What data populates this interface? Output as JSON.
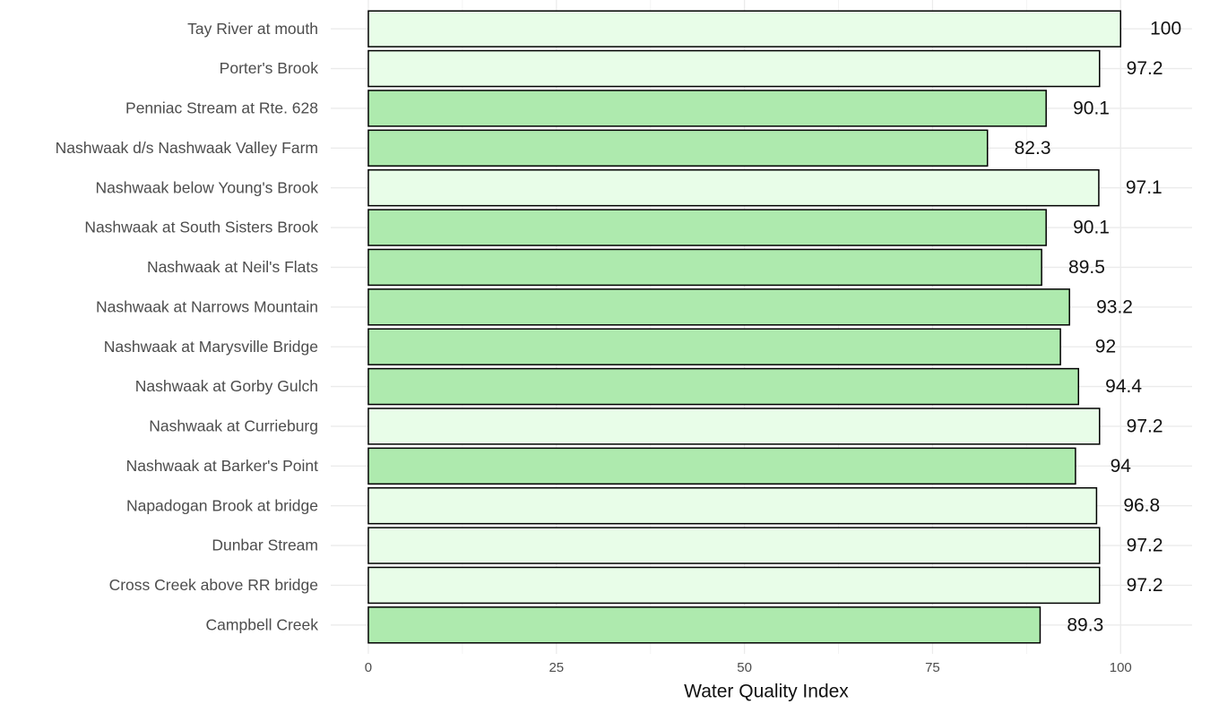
{
  "chart_data": {
    "type": "barh",
    "x_label": "Water Quality Index",
    "categories": [
      "Tay River at mouth",
      "Porter's Brook",
      "Penniac Stream at Rte. 628",
      "Nashwaak d/s Nashwaak Valley Farm",
      "Nashwaak below Young's Brook",
      "Nashwaak at South Sisters Brook",
      "Nashwaak at Neil's Flats",
      "Nashwaak at Narrows Mountain",
      "Nashwaak at Marysville Bridge",
      "Nashwaak at Gorby Gulch",
      "Nashwaak at Currieburg",
      "Nashwaak at Barker's Point",
      "Napadogan Brook at bridge",
      "Dunbar Stream",
      "Cross Creek above RR bridge",
      "Campbell Creek"
    ],
    "values": [
      100,
      97.2,
      90.1,
      82.3,
      97.1,
      90.1,
      89.5,
      93.2,
      92,
      94.4,
      97.2,
      94,
      96.8,
      97.2,
      97.2,
      89.3
    ],
    "colors": [
      "#e8fde8",
      "#e8fde8",
      "#aeeaae",
      "#aeeaae",
      "#e8fde8",
      "#aeeaae",
      "#aeeaae",
      "#aeeaae",
      "#aeeaae",
      "#aeeaae",
      "#e8fde8",
      "#aeeaae",
      "#e8fde8",
      "#e8fde8",
      "#e8fde8",
      "#aeeaae"
    ],
    "xlim": [
      -5,
      109.5
    ],
    "xticks": [
      0,
      25,
      50,
      75,
      100
    ],
    "minor_xticks": [
      12.5,
      37.5,
      62.5,
      87.5
    ],
    "grid": true
  }
}
